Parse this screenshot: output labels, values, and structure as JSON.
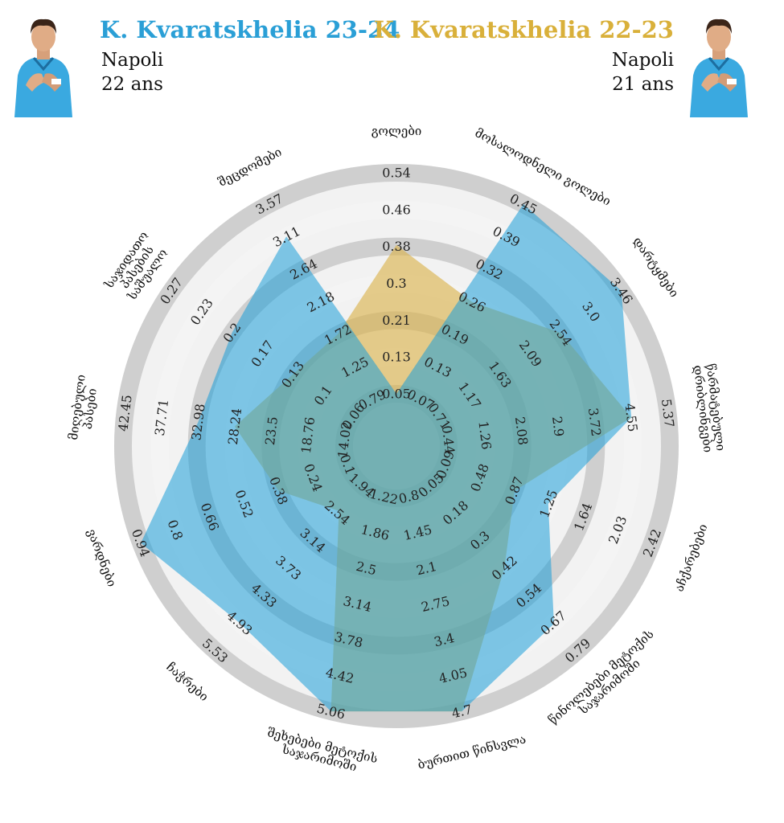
{
  "players": {
    "current": {
      "name": "K. Kvaratskhelia 23-24",
      "club": "Napoli",
      "age": "22 ans",
      "color": "#2a9fd6"
    },
    "previous": {
      "name": "K. Kvaratskhelia 22-23",
      "club": "Napoli",
      "age": "21 ans",
      "color": "#d9b03a"
    }
  },
  "chart_data": {
    "type": "radar",
    "series": [
      {
        "name": "K. Kvaratskhelia 23-24",
        "color": "#2a9fd6",
        "fill": "rgba(28,158,216,0.55)",
        "values": [
          0.05,
          0.45,
          3.46,
          4.55,
          1.25,
          0.67,
          4.7,
          5.06,
          4.93,
          0.94,
          32.98,
          0.2,
          3.11
        ]
      },
      {
        "name": "K. Kvaratskhelia 22-23",
        "color": "#d9b03a",
        "fill": "rgba(218,178,72,0.62)",
        "values": [
          0.38,
          0.26,
          2.54,
          4.55,
          0.87,
          0.42,
          4.7,
          5.06,
          2.5,
          0.38,
          28.24,
          0.13,
          1.72
        ]
      }
    ],
    "axes": [
      {
        "label": "გოლები",
        "label_lines": [
          "გოლები"
        ],
        "ticks": [
          "0.05",
          "0.13",
          "0.21",
          "0.3",
          "0.38",
          "0.46",
          "0.54"
        ],
        "max": 0.54
      },
      {
        "label": "მოსალოდნელი გოლები",
        "label_lines": [
          "მოსალოდნელი  გოლები"
        ],
        "ticks": [
          "0.07",
          "0.13",
          "0.19",
          "0.26",
          "0.32",
          "0.39",
          "0.45"
        ],
        "max": 0.45
      },
      {
        "label": "დარტყმები",
        "label_lines": [
          "დარტყმები"
        ],
        "ticks": [
          "0.71",
          "1.17",
          "1.63",
          "2.09",
          "2.54",
          "3.0",
          "3.46"
        ],
        "max": 3.46
      },
      {
        "label": "წარმატებული დრიბლინგები",
        "label_lines": [
          "წარმატებული",
          "დრიბლინგები"
        ],
        "ticks": [
          "0.44",
          "1.26",
          "2.08",
          "2.9",
          "3.72",
          "4.55",
          "5.37"
        ],
        "max": 5.37
      },
      {
        "label": "აჩქარებები",
        "label_lines": [
          "აჩქარებები"
        ],
        "ticks": [
          "0.09",
          "0.48",
          "0.87",
          "1.25",
          "1.64",
          "2.03",
          "2.42"
        ],
        "max": 2.42
      },
      {
        "label": "წინოლებები მეტოქის საჯარიმოში",
        "label_lines": [
          "წინოლებები მეტოქის",
          "საჯარიმოში"
        ],
        "ticks": [
          "0.05",
          "0.18",
          "0.3",
          "0.42",
          "0.54",
          "0.67",
          "0.79"
        ],
        "max": 0.79
      },
      {
        "label": "ბურთით წინსვლა",
        "label_lines": [
          "ბურთით წინსვლა"
        ],
        "ticks": [
          "0.8",
          "1.45",
          "2.1",
          "2.75",
          "3.4",
          "4.05",
          "4.7"
        ],
        "max": 4.7
      },
      {
        "label": "შეხებები მეტოქის საჯარიმოში",
        "label_lines": [
          "შეხებები მეტოქის",
          "საჯარიმოში"
        ],
        "ticks": [
          "1.22",
          "1.86",
          "2.5",
          "3.14",
          "3.78",
          "4.42",
          "5.06"
        ],
        "max": 5.06
      },
      {
        "label": "ჩაჭრები",
        "label_lines": [
          "ჩაჭრები"
        ],
        "ticks": [
          "1.94",
          "2.54",
          "3.14",
          "3.73",
          "4.33",
          "4.93",
          "5.53"
        ],
        "max": 5.53
      },
      {
        "label": "ვარდნები",
        "label_lines": [
          "ვარდნები"
        ],
        "ticks": [
          "0.1",
          "0.24",
          "0.38",
          "0.52",
          "0.66",
          "0.8",
          "0.94"
        ],
        "max": 0.94
      },
      {
        "label": "მიღებული პასები",
        "label_lines": [
          "მიღებული",
          "პასები"
        ],
        "ticks": [
          "14.02",
          "18.76",
          "23.5",
          "28.24",
          "32.98",
          "37.71",
          "42.45"
        ],
        "max": 42.45
      },
      {
        "label": "საჯიდათო პასების საშუალო",
        "label_lines": [
          "საჯიდათო",
          "პასების",
          "საშუალო"
        ],
        "ticks": [
          "0.06",
          "0.1",
          "0.13",
          "0.17",
          "0.2",
          "0.23",
          "0.27"
        ],
        "max": 0.27
      },
      {
        "label": "შეცდომები",
        "label_lines": [
          "შეცდომები"
        ],
        "ticks": [
          "0.79",
          "1.25",
          "1.72",
          "2.18",
          "2.64",
          "3.11",
          "3.57"
        ],
        "max": 3.57
      }
    ],
    "rings": 7,
    "grid": true,
    "legend": "top"
  }
}
